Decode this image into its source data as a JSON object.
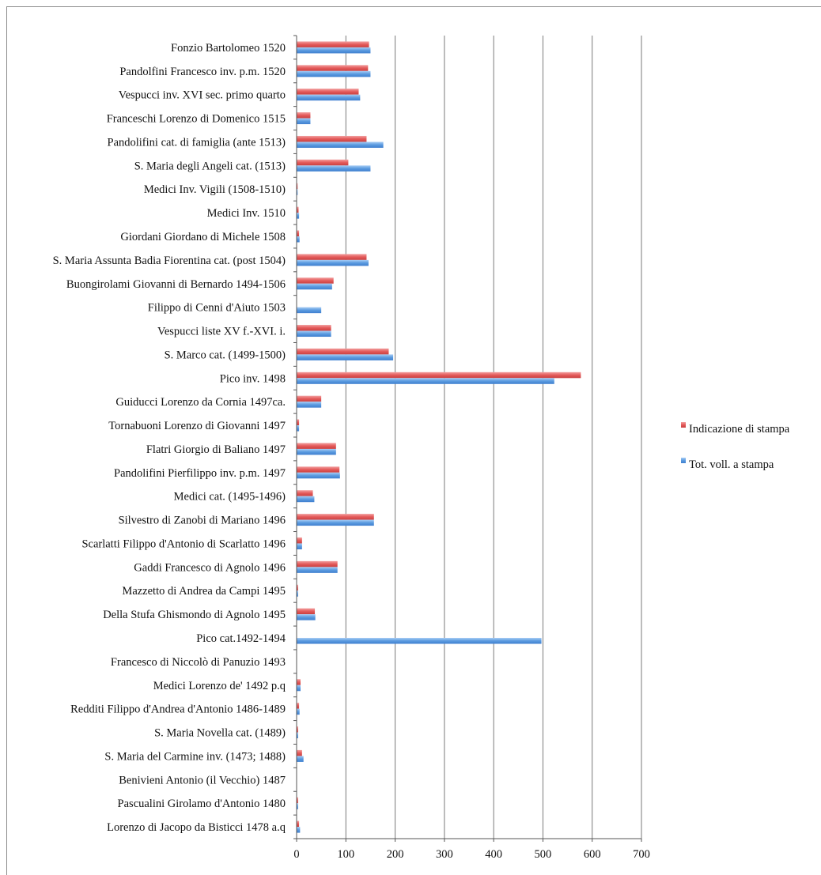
{
  "chart_data": {
    "type": "bar",
    "orientation": "horizontal",
    "categories": [
      "Fonzio Bartolomeo 1520",
      "Pandolfini Francesco inv. p.m. 1520",
      "Vespucci inv. XVI sec. primo quarto",
      "Franceschi Lorenzo di Domenico 1515",
      "Pandolifini cat. di famiglia  (ante 1513)",
      "S. Maria degli Angeli cat. (1513)",
      "Medici Inv. Vigili  (1508-1510)",
      "Medici Inv. 1510",
      "Giordani Giordano di Michele  1508",
      "S. Maria Assunta Badia Fiorentina cat. (post 1504)",
      "Buongirolami Giovanni di Bernardo 1494-1506",
      "Filippo di Cenni d'Aiuto 1503",
      "Vespucci liste XV f.-XVI. i.",
      "S. Marco cat. (1499-1500)",
      "Pico inv. 1498",
      "Guiducci Lorenzo da Cornia 1497ca.",
      "Tornabuoni Lorenzo di Giovanni 1497",
      "Flatri Giorgio di Baliano 1497",
      "Pandolifini Pierfilippo inv. p.m. 1497",
      "Medici cat. (1495-1496)",
      "Silvestro di Zanobi di Mariano 1496",
      "Scarlatti Filippo d'Antonio di Scarlatto 1496",
      "Gaddi Francesco di Agnolo 1496",
      "Mazzetto di Andrea da Campi 1495",
      "Della Stufa Ghismondo di Agnolo 1495",
      "Pico cat.1492-1494",
      "Francesco di Niccolò di Panuzio 1493",
      "Medici Lorenzo de' 1492 p.q",
      "Redditi Filippo d'Andrea d'Antonio 1486-1489",
      "S. Maria Novella cat. (1489)",
      "S. Maria del Carmine inv. (1473; 1488)",
      "Benivieni Antonio (il Vecchio) 1487",
      "Pascualini Girolamo d'Antonio 1480",
      "Lorenzo di Jacopo da Bisticci 1478 a.q"
    ],
    "series": [
      {
        "name": "Indicazione di stampa",
        "color": "#e45a5a",
        "values": [
          147,
          145,
          126,
          28,
          142,
          105,
          2,
          4,
          5,
          142,
          75,
          0,
          70,
          187,
          577,
          50,
          5,
          80,
          87,
          33,
          157,
          11,
          83,
          3,
          37,
          0,
          0,
          8,
          5,
          3,
          11,
          0,
          3,
          5
        ]
      },
      {
        "name": "Tot. voll. a stampa",
        "color": "#5b9be0",
        "values": [
          150,
          150,
          129,
          28,
          176,
          150,
          2,
          5,
          6,
          146,
          72,
          50,
          70,
          196,
          523,
          50,
          5,
          80,
          88,
          36,
          157,
          11,
          83,
          3,
          38,
          497,
          0,
          8,
          6,
          3,
          14,
          0,
          3,
          7
        ]
      }
    ],
    "xlim": [
      0,
      700
    ],
    "xticks": [
      "0",
      "100",
      "200",
      "300",
      "400",
      "500",
      "600",
      "700"
    ],
    "grid": true,
    "legend_position": "right"
  }
}
